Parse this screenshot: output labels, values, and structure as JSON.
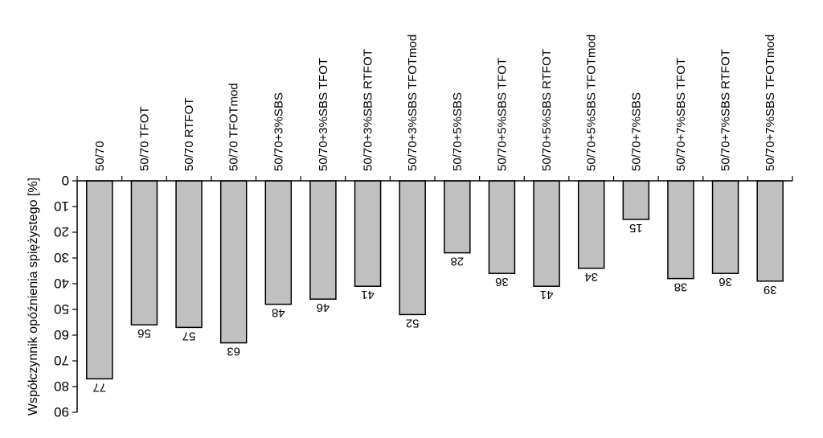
{
  "chart_data": {
    "type": "bar",
    "orientation": "vertical, image flipped (mirror)",
    "ylabel": "Współczynnik opóźnienia spiężystego [%]",
    "ylim": [
      0,
      90
    ],
    "yticks": [
      0,
      10,
      20,
      30,
      40,
      50,
      60,
      70,
      80,
      90
    ],
    "categories": [
      "50/70",
      "50/70 TFOT",
      "50/70 RTFOT",
      "50/70 TFOTmod",
      "50/70+3%SBS",
      "50/70+3%SBS TFOT",
      "50/70+3%SBS RTFOT",
      "50/70+3%SBS TFOTmod",
      "50/70+5%SBS",
      "50/70+5%SBS TFOT",
      "50/70+5%SBS RTFOT",
      "50/70+5%SBS TFOTmod",
      "50/70+7%SBS",
      "50/70+7%SBS TFOT",
      "50/70+7%SBS RTFOT",
      "50/70+7%SBS TFOTmod"
    ],
    "values": [
      77,
      56,
      57,
      63,
      48,
      46,
      41,
      52,
      28,
      36,
      41,
      34,
      15,
      38,
      36,
      39
    ],
    "data_labels": [
      "77",
      "56",
      "57",
      "63",
      "48",
      "46",
      "41",
      "52",
      "28",
      "36",
      "41",
      "34",
      "15",
      "38",
      "36",
      "39"
    ],
    "bar_color": "#c0c0c0",
    "edge_color": "#000000",
    "grid": false,
    "legend": "none"
  }
}
